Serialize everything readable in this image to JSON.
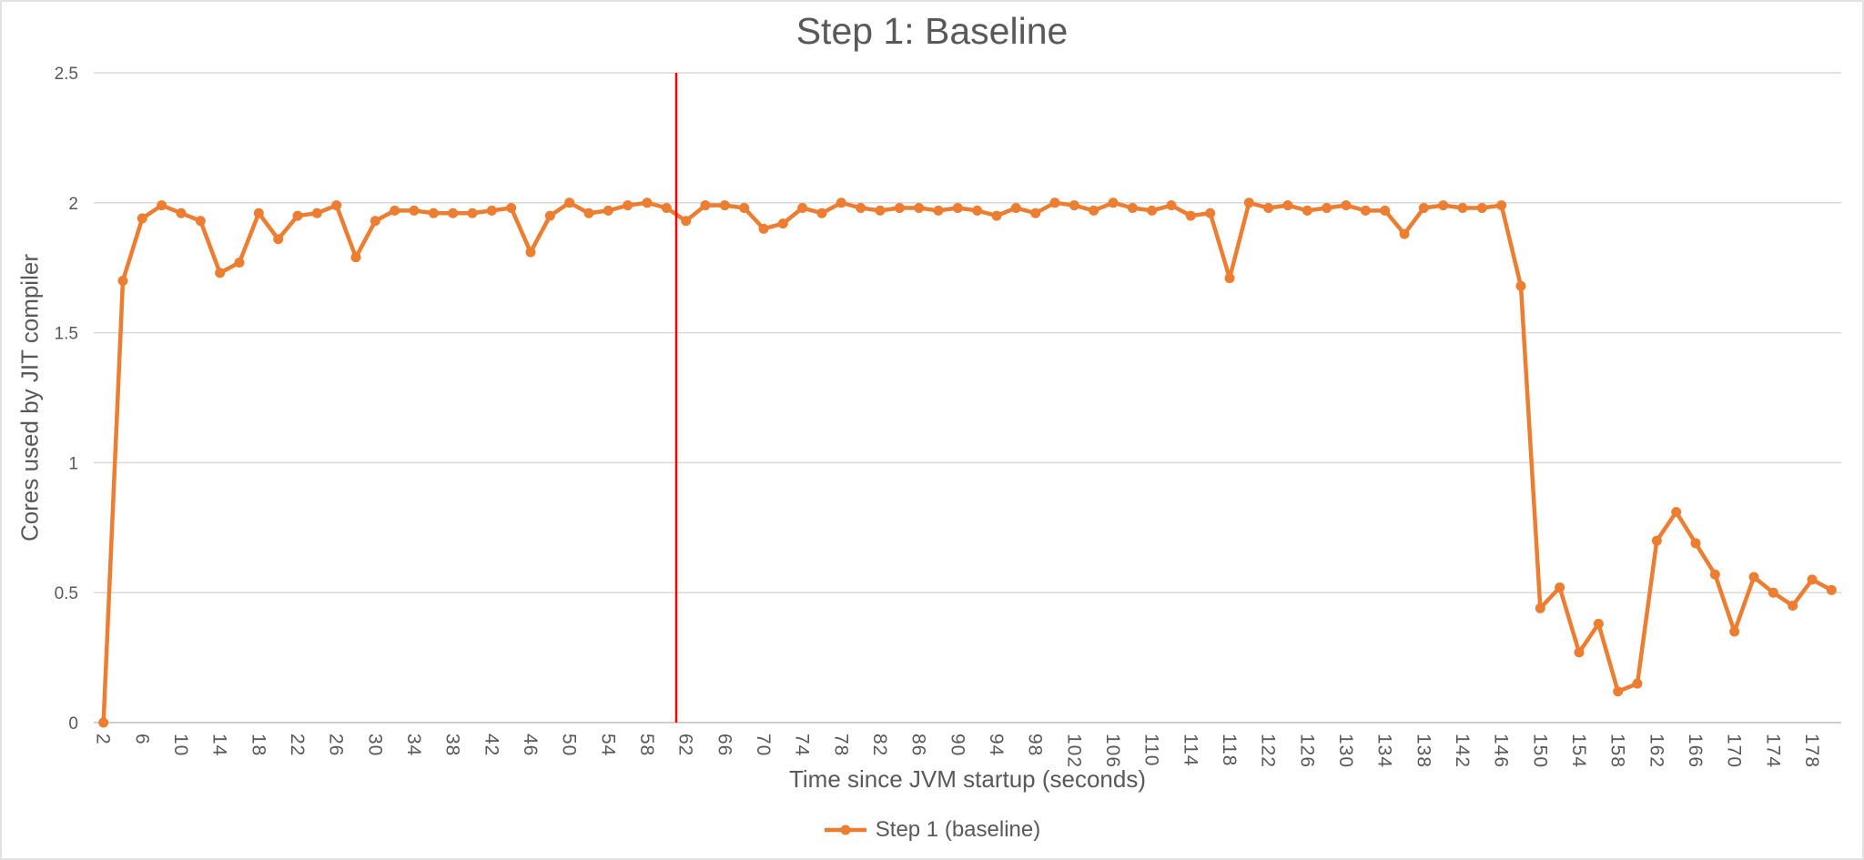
{
  "colors": {
    "series": "#ED7D31",
    "reference_line": "#FF0000",
    "gridline": "#D9D9D9",
    "axis_line": "#BFBFBF",
    "text": "#595959",
    "background": "#FFFFFF",
    "border": "#E2E2E2"
  },
  "chart_data": {
    "type": "line",
    "title": "Step 1: Baseline",
    "xlabel": "Time since JVM startup (seconds)",
    "ylabel": "Cores used by JIT compiler",
    "ylim": [
      0,
      2.5
    ],
    "y_ticks": [
      "0",
      "0.5",
      "1",
      "1.5",
      "2",
      "2.5"
    ],
    "grid": true,
    "legend_position": "bottom",
    "legend_marker": "line-with-circle-icon",
    "x": [
      2,
      4,
      6,
      8,
      10,
      12,
      14,
      16,
      18,
      20,
      22,
      24,
      26,
      28,
      30,
      32,
      34,
      36,
      38,
      40,
      42,
      44,
      46,
      48,
      50,
      52,
      54,
      56,
      58,
      60,
      62,
      64,
      66,
      68,
      70,
      72,
      74,
      76,
      78,
      80,
      82,
      84,
      86,
      88,
      90,
      92,
      94,
      96,
      98,
      100,
      102,
      104,
      106,
      108,
      110,
      112,
      114,
      116,
      118,
      120,
      122,
      124,
      126,
      128,
      130,
      132,
      134,
      136,
      138,
      140,
      142,
      144,
      146,
      148,
      150,
      152,
      154,
      156,
      158,
      160,
      162,
      164,
      166,
      168,
      170,
      172,
      174,
      176,
      178,
      180
    ],
    "x_tick_labels": [
      2,
      6,
      10,
      14,
      18,
      22,
      26,
      30,
      34,
      38,
      42,
      46,
      50,
      54,
      58,
      62,
      66,
      70,
      74,
      78,
      82,
      86,
      90,
      94,
      98,
      102,
      106,
      110,
      114,
      118,
      122,
      126,
      130,
      134,
      138,
      142,
      146,
      150,
      154,
      158,
      162,
      166,
      170,
      174,
      178
    ],
    "series": [
      {
        "name": "Step 1 (baseline)",
        "color": "#ED7D31",
        "marker": "circle",
        "values": [
          0,
          1.7,
          1.94,
          1.99,
          1.96,
          1.93,
          1.73,
          1.77,
          1.96,
          1.86,
          1.95,
          1.96,
          1.99,
          1.79,
          1.93,
          1.97,
          1.97,
          1.96,
          1.96,
          1.96,
          1.97,
          1.98,
          1.81,
          1.95,
          2.0,
          1.96,
          1.97,
          1.99,
          2.0,
          1.98,
          1.93,
          1.99,
          1.99,
          1.98,
          1.9,
          1.92,
          1.98,
          1.96,
          2.0,
          1.98,
          1.97,
          1.98,
          1.98,
          1.97,
          1.98,
          1.97,
          1.95,
          1.98,
          1.96,
          2.0,
          1.99,
          1.97,
          2.0,
          1.98,
          1.97,
          1.99,
          1.95,
          1.96,
          1.71,
          2.0,
          1.98,
          1.99,
          1.97,
          1.98,
          1.99,
          1.97,
          1.97,
          1.88,
          1.98,
          1.99,
          1.98,
          1.98,
          1.99,
          1.68,
          0.44,
          0.52,
          0.27,
          0.38,
          0.12,
          0.15,
          0.7,
          0.81,
          0.69,
          0.57,
          0.35,
          0.56,
          0.5,
          0.45,
          0.55,
          0.51
        ]
      }
    ],
    "annotations": [
      {
        "type": "vline",
        "x": 61,
        "color": "#FF0000"
      }
    ]
  }
}
